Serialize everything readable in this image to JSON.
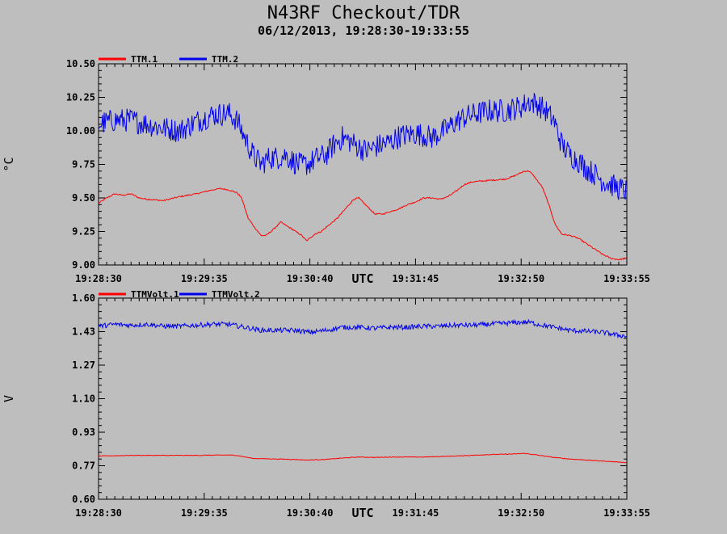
{
  "title": "N43RF Checkout/TDR",
  "subtitle": "06/12/2013, 19:28:30-19:33:55",
  "colors": {
    "background": "#bebebe",
    "series1": "#ff0000",
    "series2": "#0000ee"
  },
  "chart_data": [
    {
      "type": "line",
      "ylabel": "°C",
      "xlabel": "UTC",
      "ylim": [
        9.0,
        10.5
      ],
      "yticks": [
        "10.50",
        "10.25",
        "10.00",
        "9.75",
        "9.50",
        "9.25",
        "9.00"
      ],
      "xticks": [
        "19:28:30",
        "19:29:35",
        "19:30:40",
        "19:31:45",
        "19:32:50",
        "19:33:55"
      ],
      "xlim_seconds": [
        0,
        325
      ],
      "legend": "top-left",
      "grid": false,
      "series": [
        {
          "name": "TTM.1",
          "color": "#ff0000",
          "noise": 0.005,
          "points": [
            [
              0,
              9.46
            ],
            [
              5,
              9.5
            ],
            [
              10,
              9.53
            ],
            [
              15,
              9.52
            ],
            [
              20,
              9.53
            ],
            [
              25,
              9.5
            ],
            [
              30,
              9.49
            ],
            [
              40,
              9.48
            ],
            [
              50,
              9.51
            ],
            [
              60,
              9.53
            ],
            [
              70,
              9.56
            ],
            [
              75,
              9.57
            ],
            [
              80,
              9.56
            ],
            [
              85,
              9.54
            ],
            [
              88,
              9.5
            ],
            [
              92,
              9.35
            ],
            [
              96,
              9.28
            ],
            [
              100,
              9.22
            ],
            [
              103,
              9.22
            ],
            [
              108,
              9.27
            ],
            [
              112,
              9.32
            ],
            [
              116,
              9.29
            ],
            [
              120,
              9.26
            ],
            [
              125,
              9.22
            ],
            [
              128,
              9.18
            ],
            [
              133,
              9.23
            ],
            [
              137,
              9.25
            ],
            [
              142,
              9.3
            ],
            [
              147,
              9.35
            ],
            [
              152,
              9.42
            ],
            [
              157,
              9.49
            ],
            [
              160,
              9.5
            ],
            [
              165,
              9.44
            ],
            [
              170,
              9.38
            ],
            [
              175,
              9.38
            ],
            [
              180,
              9.4
            ],
            [
              185,
              9.42
            ],
            [
              190,
              9.45
            ],
            [
              195,
              9.47
            ],
            [
              200,
              9.5
            ],
            [
              205,
              9.5
            ],
            [
              210,
              9.49
            ],
            [
              215,
              9.51
            ],
            [
              220,
              9.55
            ],
            [
              225,
              9.6
            ],
            [
              230,
              9.62
            ],
            [
              240,
              9.63
            ],
            [
              250,
              9.64
            ],
            [
              255,
              9.66
            ],
            [
              262,
              9.7
            ],
            [
              265,
              9.7
            ],
            [
              268,
              9.66
            ],
            [
              273,
              9.58
            ],
            [
              277,
              9.45
            ],
            [
              281,
              9.3
            ],
            [
              285,
              9.23
            ],
            [
              290,
              9.22
            ],
            [
              295,
              9.2
            ],
            [
              300,
              9.16
            ],
            [
              305,
              9.12
            ],
            [
              310,
              9.08
            ],
            [
              315,
              9.05
            ],
            [
              320,
              9.04
            ],
            [
              325,
              9.05
            ]
          ]
        },
        {
          "name": "TTM.2",
          "color": "#0000ee",
          "noise": 0.09,
          "points": [
            [
              0,
              10.05
            ],
            [
              10,
              10.08
            ],
            [
              20,
              10.08
            ],
            [
              30,
              10.05
            ],
            [
              40,
              10.02
            ],
            [
              50,
              10.0
            ],
            [
              60,
              10.07
            ],
            [
              70,
              10.12
            ],
            [
              80,
              10.13
            ],
            [
              85,
              10.08
            ],
            [
              90,
              9.95
            ],
            [
              95,
              9.82
            ],
            [
              100,
              9.75
            ],
            [
              105,
              9.8
            ],
            [
              110,
              9.8
            ],
            [
              115,
              9.82
            ],
            [
              120,
              9.77
            ],
            [
              125,
              9.74
            ],
            [
              130,
              9.76
            ],
            [
              135,
              9.8
            ],
            [
              140,
              9.82
            ],
            [
              145,
              9.9
            ],
            [
              150,
              9.95
            ],
            [
              155,
              9.92
            ],
            [
              160,
              9.88
            ],
            [
              165,
              9.85
            ],
            [
              170,
              9.88
            ],
            [
              175,
              9.9
            ],
            [
              180,
              9.92
            ],
            [
              185,
              9.96
            ],
            [
              190,
              9.97
            ],
            [
              195,
              9.98
            ],
            [
              200,
              9.97
            ],
            [
              205,
              9.95
            ],
            [
              210,
              9.98
            ],
            [
              215,
              10.02
            ],
            [
              220,
              10.07
            ],
            [
              225,
              10.1
            ],
            [
              230,
              10.12
            ],
            [
              240,
              10.15
            ],
            [
              250,
              10.15
            ],
            [
              260,
              10.18
            ],
            [
              265,
              10.22
            ],
            [
              270,
              10.2
            ],
            [
              275,
              10.15
            ],
            [
              280,
              10.08
            ],
            [
              285,
              9.9
            ],
            [
              290,
              9.82
            ],
            [
              295,
              9.78
            ],
            [
              300,
              9.72
            ],
            [
              305,
              9.68
            ],
            [
              310,
              9.63
            ],
            [
              315,
              9.6
            ],
            [
              320,
              9.57
            ],
            [
              325,
              9.55
            ]
          ]
        }
      ]
    },
    {
      "type": "line",
      "ylabel": "V",
      "xlabel": "UTC",
      "ylim": [
        0.6,
        1.6
      ],
      "yticks": [
        "1.60",
        "1.43",
        "1.27",
        "1.10",
        "0.93",
        "0.77",
        "0.60"
      ],
      "xticks": [
        "19:28:30",
        "19:29:35",
        "19:30:40",
        "19:31:45",
        "19:32:50",
        "19:33:55"
      ],
      "xlim_seconds": [
        0,
        325
      ],
      "legend": "top-left",
      "grid": false,
      "series": [
        {
          "name": "TTMVolt.1",
          "color": "#ff0000",
          "noise": 0.0015,
          "points": [
            [
              0,
              0.815
            ],
            [
              20,
              0.818
            ],
            [
              40,
              0.818
            ],
            [
              60,
              0.818
            ],
            [
              80,
              0.82
            ],
            [
              85,
              0.818
            ],
            [
              95,
              0.803
            ],
            [
              110,
              0.8
            ],
            [
              120,
              0.798
            ],
            [
              128,
              0.795
            ],
            [
              140,
              0.798
            ],
            [
              150,
              0.805
            ],
            [
              160,
              0.81
            ],
            [
              170,
              0.808
            ],
            [
              180,
              0.81
            ],
            [
              200,
              0.81
            ],
            [
              220,
              0.815
            ],
            [
              240,
              0.822
            ],
            [
              255,
              0.825
            ],
            [
              262,
              0.828
            ],
            [
              268,
              0.822
            ],
            [
              280,
              0.808
            ],
            [
              290,
              0.8
            ],
            [
              300,
              0.795
            ],
            [
              310,
              0.79
            ],
            [
              320,
              0.785
            ],
            [
              325,
              0.782
            ]
          ]
        },
        {
          "name": "TTMVolt.2",
          "color": "#0000ee",
          "noise": 0.012,
          "points": [
            [
              0,
              1.46
            ],
            [
              10,
              1.47
            ],
            [
              20,
              1.465
            ],
            [
              30,
              1.47
            ],
            [
              40,
              1.46
            ],
            [
              50,
              1.46
            ],
            [
              60,
              1.465
            ],
            [
              70,
              1.47
            ],
            [
              80,
              1.47
            ],
            [
              90,
              1.455
            ],
            [
              100,
              1.44
            ],
            [
              110,
              1.44
            ],
            [
              120,
              1.44
            ],
            [
              130,
              1.43
            ],
            [
              140,
              1.44
            ],
            [
              150,
              1.455
            ],
            [
              160,
              1.455
            ],
            [
              170,
              1.45
            ],
            [
              180,
              1.455
            ],
            [
              190,
              1.455
            ],
            [
              200,
              1.46
            ],
            [
              210,
              1.46
            ],
            [
              220,
              1.465
            ],
            [
              230,
              1.465
            ],
            [
              240,
              1.47
            ],
            [
              250,
              1.475
            ],
            [
              260,
              1.48
            ],
            [
              265,
              1.48
            ],
            [
              270,
              1.47
            ],
            [
              280,
              1.455
            ],
            [
              290,
              1.44
            ],
            [
              300,
              1.435
            ],
            [
              310,
              1.43
            ],
            [
              320,
              1.415
            ],
            [
              325,
              1.41
            ]
          ]
        }
      ]
    }
  ]
}
